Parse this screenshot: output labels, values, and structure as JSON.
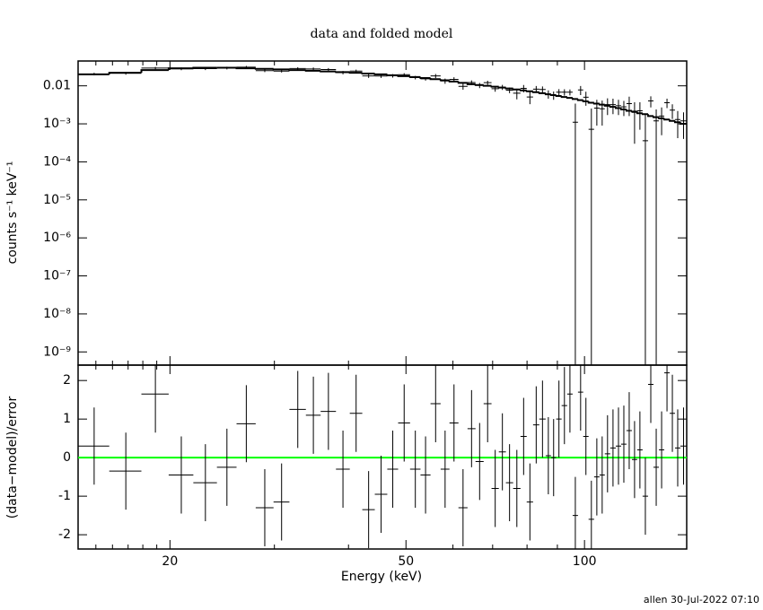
{
  "footer": "allen 30-Jul-2022 07:10",
  "chart_data": [
    {
      "type": "spectrum",
      "title": "data and folded model",
      "ylabel": "counts s⁻¹ keV⁻¹",
      "ylog": true,
      "ylim": [
        4.5e-10,
        0.045
      ],
      "yticks": [
        0.01,
        {
          "value": 0.001,
          "label": "10⁻³"
        },
        {
          "value": 0.0001,
          "label": "10⁻⁴"
        },
        {
          "value": 1e-05,
          "label": "10⁻⁵"
        },
        {
          "value": 1e-06,
          "label": "10⁻⁶"
        },
        {
          "value": 1e-07,
          "label": "10⁻⁷"
        },
        {
          "value": 1e-08,
          "label": "10⁻⁸"
        },
        {
          "value": 1e-09,
          "label": "10⁻⁹"
        }
      ],
      "color": "#000000",
      "bin_edges": [
        14.0,
        15.8,
        17.9,
        19.9,
        21.9,
        24.0,
        25.9,
        27.9,
        29.9,
        31.8,
        33.9,
        35.9,
        38.1,
        40.2,
        42.2,
        44.3,
        46.5,
        48.5,
        50.8,
        52.9,
        55.0,
        57.2,
        59.2,
        61.3,
        63.5,
        65.5,
        67.6,
        69.7,
        71.7,
        73.7,
        75.8,
        78.0,
        79.9,
        81.9,
        83.9,
        86.0,
        87.8,
        89.6,
        91.5,
        93.5,
        95.5,
        97.5,
        99.5,
        101.6,
        103.8,
        106.0,
        108.2,
        110.5,
        112.9,
        115.3,
        117.7,
        120.2,
        122.7,
        125.3,
        128.0,
        130.7,
        133.5,
        136.3,
        139.2,
        142.1,
        145.1,
        148.7
      ],
      "values": [
        0.0205,
        0.0214,
        0.0294,
        0.028,
        0.0284,
        0.0294,
        0.031,
        0.0251,
        0.0245,
        0.0286,
        0.0278,
        0.0269,
        0.0223,
        0.0245,
        0.0182,
        0.0181,
        0.0184,
        0.0196,
        0.0165,
        0.0153,
        0.0182,
        0.0134,
        0.0148,
        0.0097,
        0.0122,
        0.0103,
        0.0121,
        0.0084,
        0.0092,
        0.0077,
        0.0064,
        0.0086,
        0.0051,
        0.0082,
        0.008,
        0.0061,
        0.0057,
        0.0068,
        0.0068,
        0.0068,
        0.0011,
        0.0078,
        0.005,
        0.00072,
        0.0026,
        0.0025,
        0.0032,
        0.0032,
        0.003,
        0.0028,
        0.0034,
        0.002,
        0.0022,
        0.00036,
        0.004,
        0.0012,
        0.0016,
        0.0036,
        0.0023,
        0.0013,
        0.0012
      ],
      "errors": [
        0.0016,
        0.0018,
        0.0021,
        0.0023,
        0.0024,
        0.0024,
        0.0023,
        0.0022,
        0.0022,
        0.0021,
        0.0025,
        0.0024,
        0.0023,
        0.0022,
        0.0021,
        0.002,
        0.0019,
        0.0018,
        0.0017,
        0.0016,
        0.0023,
        0.0021,
        0.002,
        0.0018,
        0.0017,
        0.0016,
        0.0015,
        0.0014,
        0.0014,
        0.0013,
        0.002,
        0.0019,
        0.0018,
        0.0017,
        0.0016,
        0.0015,
        0.0014,
        0.0014,
        0.0013,
        0.0012,
        0.0023,
        0.0021,
        0.002,
        0.0018,
        0.0017,
        0.0016,
        0.0015,
        0.0014,
        0.0013,
        0.0012,
        0.0018,
        0.0017,
        0.0015,
        0.0014,
        0.0013,
        0.0012,
        0.0011,
        0.001,
        0.00096,
        0.00088,
        0.0008
      ],
      "model": [
        0.02,
        0.022,
        0.026,
        0.029,
        0.03,
        0.03,
        0.029,
        0.028,
        0.027,
        0.026,
        0.025,
        0.024,
        0.023,
        0.022,
        0.021,
        0.02,
        0.019,
        0.018,
        0.017,
        0.016,
        0.015,
        0.014,
        0.013,
        0.012,
        0.011,
        0.0105,
        0.01,
        0.0095,
        0.009,
        0.0085,
        0.008,
        0.0076,
        0.0072,
        0.0068,
        0.0064,
        0.006,
        0.0057,
        0.0054,
        0.0051,
        0.0048,
        0.0045,
        0.0042,
        0.0039,
        0.0036,
        0.0034,
        0.0032,
        0.003,
        0.0028,
        0.0026,
        0.0024,
        0.0022,
        0.0021,
        0.0019,
        0.0018,
        0.0016,
        0.0015,
        0.0014,
        0.0013,
        0.0012,
        0.0011,
        0.001
      ]
    },
    {
      "type": "residual",
      "xlabel": "Energy (keV)",
      "ylabel": "(data−model)/error",
      "xlog": true,
      "xlim": [
        14.0,
        148.7
      ],
      "xticks": [
        20,
        50,
        100
      ],
      "xminorticks": [
        15,
        16,
        17,
        18,
        19,
        30,
        40,
        60,
        70,
        80,
        90
      ],
      "ylim": [
        -2.37,
        2.4
      ],
      "yticks": [
        -2,
        -1,
        0,
        1,
        2
      ],
      "color": "#000000",
      "zero_line_color": "#00ff00",
      "error": 1,
      "values": [
        0.3,
        -0.35,
        1.65,
        -0.45,
        -0.65,
        -0.25,
        0.88,
        -1.3,
        -1.15,
        1.25,
        1.1,
        1.2,
        -0.3,
        1.15,
        -1.35,
        -0.95,
        -0.3,
        0.9,
        -0.3,
        -0.45,
        1.4,
        -0.3,
        0.9,
        -1.3,
        0.75,
        -0.1,
        1.4,
        -0.8,
        0.15,
        -0.65,
        -0.8,
        0.55,
        -1.15,
        0.85,
        1,
        0.05,
        0,
        1,
        1.35,
        1.65,
        -1.5,
        1.7,
        0.55,
        -1.6,
        -0.5,
        -0.45,
        0.1,
        0.25,
        0.3,
        0.35,
        0.7,
        -0.05,
        0.2,
        -1,
        1.9,
        -0.25,
        0.2,
        2.2,
        1.15,
        0.25,
        0.3
      ]
    }
  ]
}
